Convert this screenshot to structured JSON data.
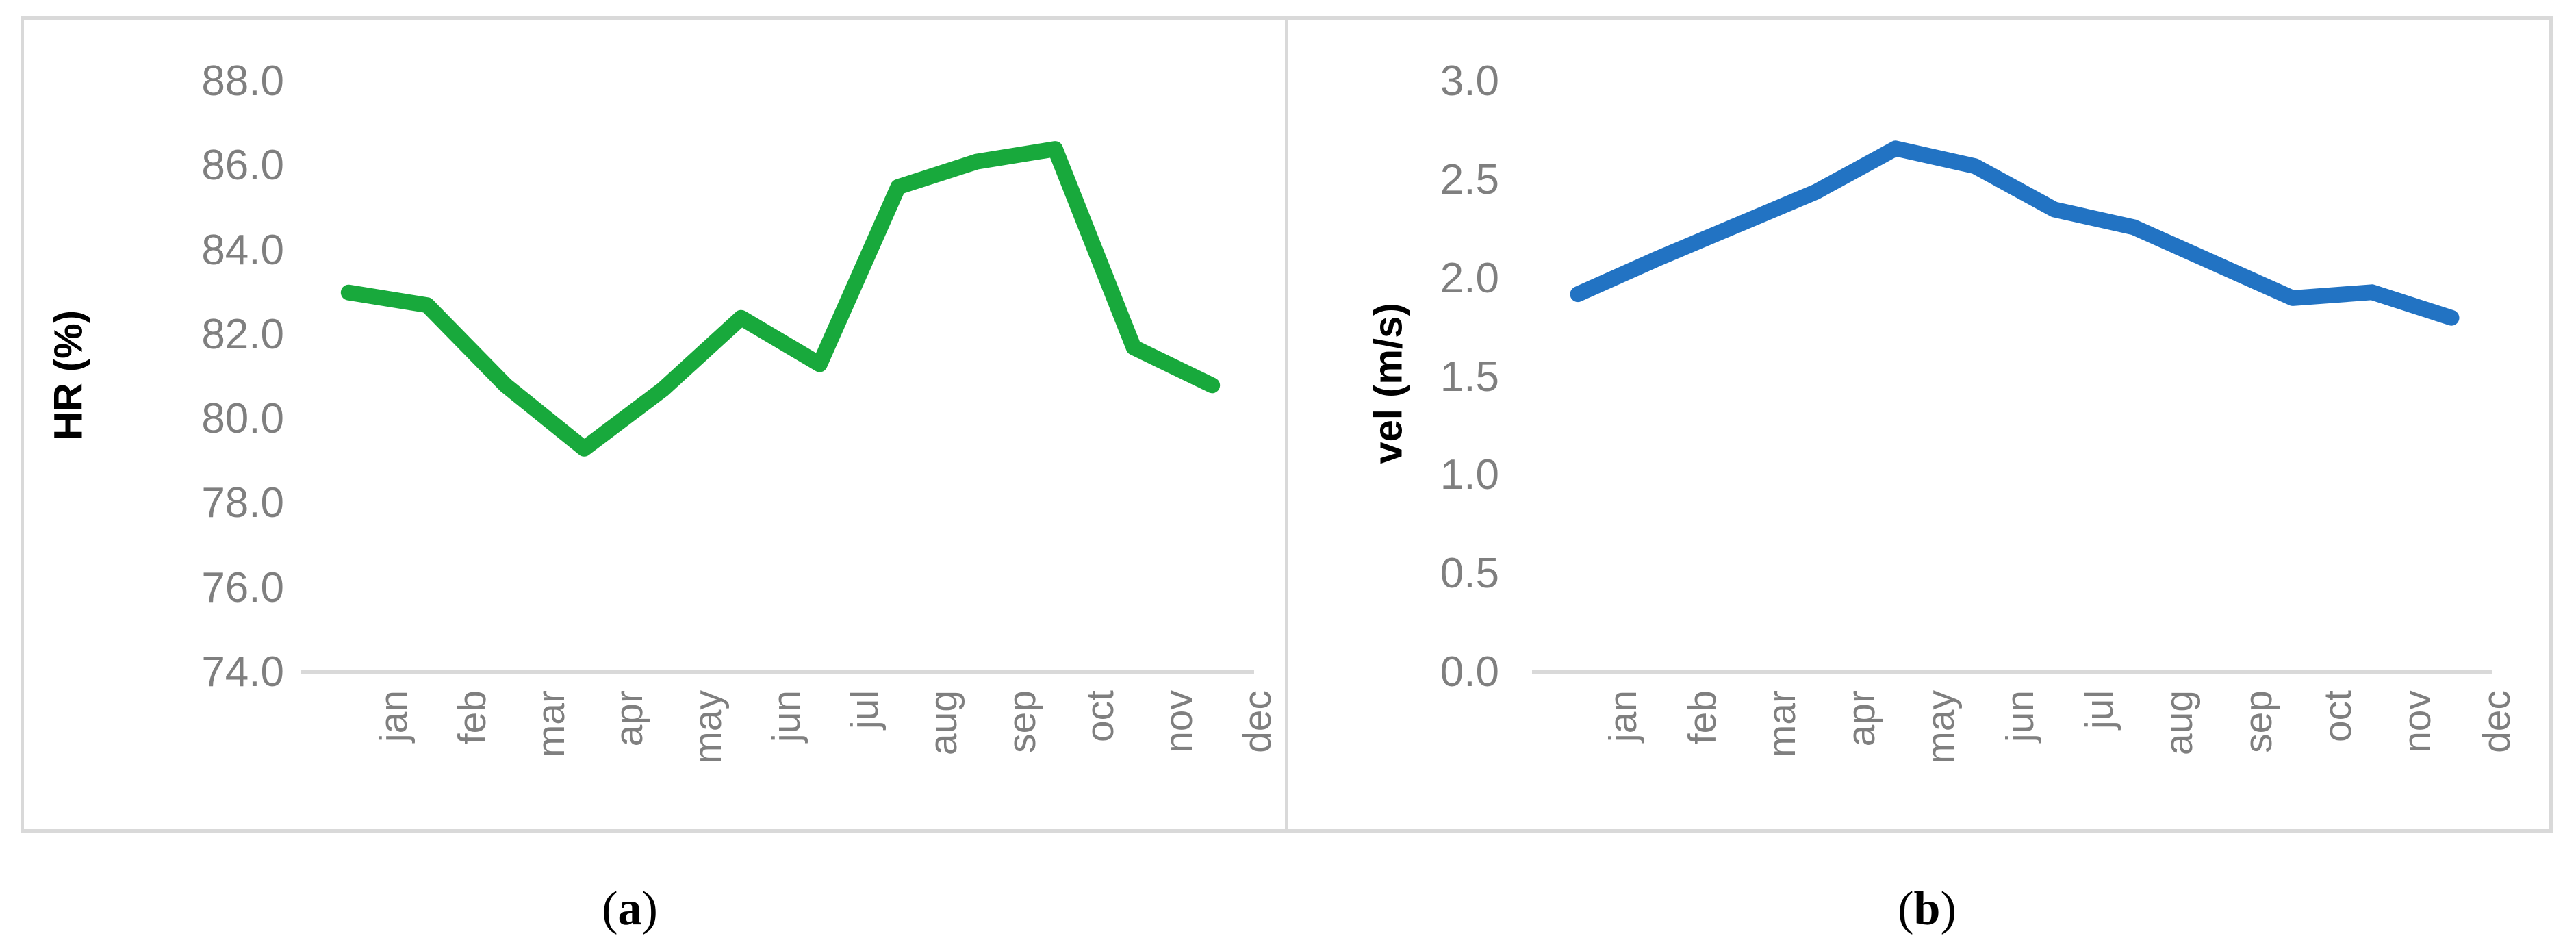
{
  "figure": {
    "background_color": "#FFFFFF",
    "border_color": "#D9D9D9",
    "tick_label_color": "#7F7F7F",
    "axis_title_color": "#000000"
  },
  "chart_data": [
    {
      "type": "line",
      "panel": "a",
      "title": "",
      "xlabel": "",
      "ylabel": "HR (%)",
      "categories": [
        "jan",
        "feb",
        "mar",
        "apr",
        "may",
        "jun",
        "jul",
        "aug",
        "sep",
        "oct",
        "nov",
        "dec"
      ],
      "values": [
        83.0,
        82.7,
        80.8,
        79.3,
        80.7,
        82.4,
        81.3,
        85.5,
        86.1,
        86.4,
        81.7,
        80.8
      ],
      "ylim": [
        74.0,
        88.0
      ],
      "ytick_step": 2.0,
      "ytick_labels": [
        "88.0",
        "86.0",
        "84.0",
        "82.0",
        "80.0",
        "78.0",
        "76.0",
        "74.0"
      ],
      "line_color": "#18A93C",
      "grid": false,
      "legend": false,
      "caption": {
        "open": "(",
        "letter": "a",
        "close": ")"
      }
    },
    {
      "type": "line",
      "panel": "b",
      "title": "",
      "xlabel": "",
      "ylabel": "vel (m/s)",
      "categories": [
        "jan",
        "feb",
        "mar",
        "apr",
        "may",
        "jun",
        "jul",
        "aug",
        "sep",
        "oct",
        "nov",
        "dec"
      ],
      "values": [
        1.92,
        2.1,
        2.27,
        2.44,
        2.66,
        2.57,
        2.35,
        2.26,
        2.08,
        1.9,
        1.93,
        1.8
      ],
      "ylim": [
        0.0,
        3.0
      ],
      "ytick_step": 0.5,
      "ytick_labels": [
        "3.0",
        "2.5",
        "2.0",
        "1.5",
        "1.0",
        "0.5",
        "0.0"
      ],
      "line_color": "#2273C3",
      "grid": false,
      "legend": false,
      "caption": {
        "open": "(",
        "letter": "b",
        "close": ")"
      }
    }
  ]
}
